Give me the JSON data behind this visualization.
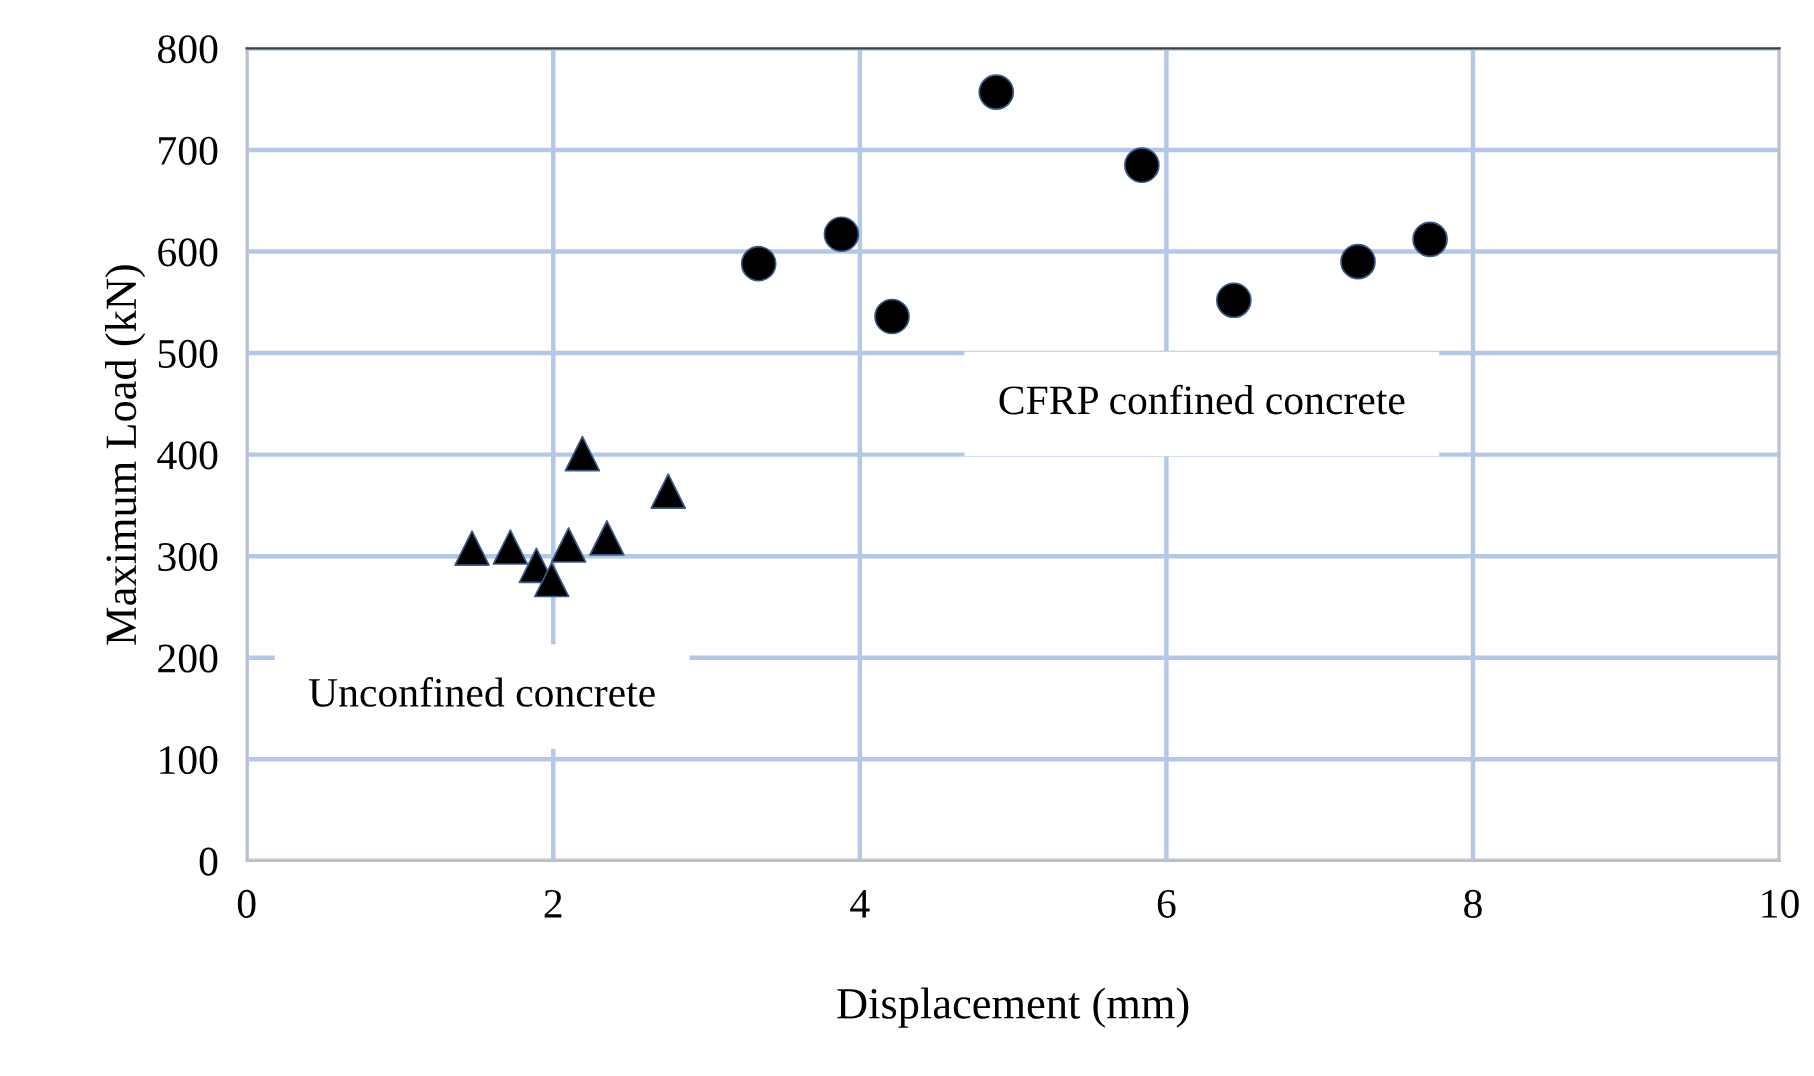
{
  "chart_data": {
    "type": "scatter",
    "xlabel": "Displacement (mm)",
    "ylabel": "Maximum Load (kN)",
    "xlim": [
      0,
      10
    ],
    "xticks": [
      0,
      2,
      4,
      6,
      8,
      10
    ],
    "ylim": [
      0,
      800
    ],
    "yticks": [
      0,
      100,
      200,
      300,
      400,
      500,
      600,
      700,
      800
    ],
    "grid": true,
    "legend": false,
    "annotations": [
      "Unconfined concrete",
      "CFRP confined concrete"
    ],
    "series": [
      {
        "color": "#000000",
        "marker": "triangle",
        "x": [
          1.47,
          1.72,
          1.89,
          1.99,
          2.1,
          2.19,
          2.35,
          2.75
        ],
        "values": [
          308,
          309,
          291,
          277,
          311,
          401,
          318,
          364
        ]
      },
      {
        "color": "#000000",
        "marker": "circle",
        "x": [
          3.34,
          3.88,
          4.21,
          4.89,
          5.84,
          6.44,
          7.25,
          7.72
        ],
        "values": [
          588,
          617,
          536,
          757,
          685,
          552,
          590,
          612
        ]
      }
    ]
  }
}
